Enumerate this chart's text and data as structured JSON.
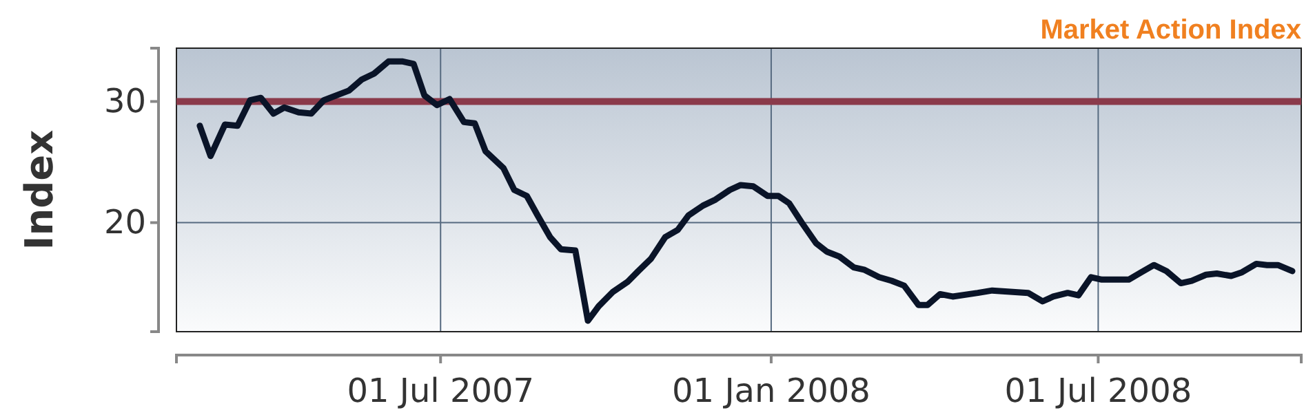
{
  "chart_data": {
    "type": "line",
    "title": "Market Action Index",
    "ylabel": "Index",
    "x": [
      "2007-02-17",
      "2007-02-23",
      "2007-03-03",
      "2007-03-10",
      "2007-03-17",
      "2007-03-23",
      "2007-03-30",
      "2007-04-05",
      "2007-04-13",
      "2007-04-20",
      "2007-04-27",
      "2007-05-04",
      "2007-05-11",
      "2007-05-18",
      "2007-05-25",
      "2007-06-02",
      "2007-06-10",
      "2007-06-16",
      "2007-06-22",
      "2007-06-29",
      "2007-07-06",
      "2007-07-14",
      "2007-07-20",
      "2007-07-26",
      "2007-08-05",
      "2007-08-11",
      "2007-08-18",
      "2007-08-24",
      "2007-08-31",
      "2007-09-06",
      "2007-09-14",
      "2007-09-21",
      "2007-09-27",
      "2007-10-05",
      "2007-10-13",
      "2007-10-19",
      "2007-10-26",
      "2007-11-03",
      "2007-11-10",
      "2007-11-16",
      "2007-11-24",
      "2007-12-01",
      "2007-12-09",
      "2007-12-15",
      "2007-12-22",
      "2007-12-30",
      "2008-01-05",
      "2008-01-11",
      "2008-01-18",
      "2008-01-26",
      "2008-02-01",
      "2008-02-08",
      "2008-02-16",
      "2008-02-22",
      "2008-03-01",
      "2008-03-08",
      "2008-03-15",
      "2008-03-23",
      "2008-03-28",
      "2008-04-04",
      "2008-04-11",
      "2008-04-25",
      "2008-05-03",
      "2008-05-23",
      "2008-05-31",
      "2008-06-06",
      "2008-06-14",
      "2008-06-20",
      "2008-06-27",
      "2008-07-03",
      "2008-07-18",
      "2008-07-25",
      "2008-08-01",
      "2008-08-08",
      "2008-08-16",
      "2008-08-22",
      "2008-08-30",
      "2008-09-05",
      "2008-09-13",
      "2008-09-19",
      "2008-09-27",
      "2008-10-03",
      "2008-10-09",
      "2008-10-17"
    ],
    "series": [
      {
        "color": "#0a1428",
        "values": [
          28,
          25.5,
          28.1,
          28,
          30.1,
          30.3,
          29,
          29.5,
          29.1,
          29,
          30.1,
          30.5,
          30.9,
          31.8,
          32.3,
          33.3,
          33.3,
          33.1,
          30.5,
          29.7,
          30.2,
          28.3,
          28.2,
          25.9,
          24.5,
          22.7,
          22.2,
          20.6,
          18.8,
          17.8,
          17.7,
          11.9,
          13.1,
          14.3,
          15.1,
          16,
          17,
          18.8,
          19.4,
          20.6,
          21.4,
          21.9,
          22.7,
          23.1,
          23,
          22.2,
          22.2,
          21.6,
          20,
          18.3,
          17.6,
          17.2,
          16.3,
          16.1,
          15.5,
          15.2,
          14.8,
          13.2,
          13.2,
          14.1,
          13.9,
          14.2,
          14.4,
          14.2,
          13.5,
          13.9,
          14.2,
          14,
          15.5,
          15.3,
          15.3,
          15.9,
          16.5,
          16,
          15,
          15.2,
          15.7,
          15.8,
          15.6,
          15.9,
          16.6,
          16.5,
          16.5,
          16
        ]
      }
    ],
    "xlim": [
      "2007-02-04",
      "2008-10-22"
    ],
    "xticks": [
      {
        "value": "2007-07-01",
        "label": "01 Jul 2007"
      },
      {
        "value": "2008-01-01",
        "label": "01 Jan 2008"
      },
      {
        "value": "2008-07-01",
        "label": "01 Jul 2008"
      }
    ],
    "ylim": [
      11,
      34.4
    ],
    "yticks": [
      20,
      30
    ],
    "grid": true,
    "marker": "none",
    "line_style": "solid",
    "ref_lines": [
      {
        "axis": "y",
        "value": 30,
        "color": "#8a3a4a"
      }
    ]
  }
}
